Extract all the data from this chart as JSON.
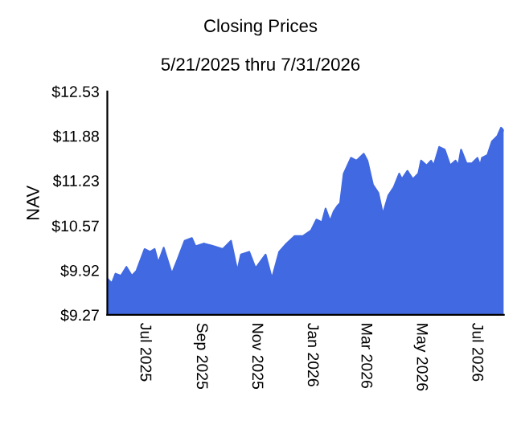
{
  "chart_data": {
    "type": "area",
    "title": "Closing Prices",
    "subtitle": "5/21/2025 thru 7/31/2026",
    "ylabel": "NAV",
    "color": "#4169e1",
    "x": [
      "2025-05-21",
      "2025-05-26",
      "2025-05-30",
      "2025-06-05",
      "2025-06-11",
      "2025-06-17",
      "2025-06-22",
      "2025-07-01",
      "2025-07-07",
      "2025-07-12",
      "2025-07-16",
      "2025-07-22",
      "2025-07-31",
      "2025-08-06",
      "2025-08-14",
      "2025-08-22",
      "2025-08-26",
      "2025-09-04",
      "2025-09-13",
      "2025-09-25",
      "2025-10-04",
      "2025-10-11",
      "2025-10-15",
      "2025-10-24",
      "2025-10-31",
      "2025-11-11",
      "2025-11-18",
      "2025-11-26",
      "2025-12-04",
      "2025-12-13",
      "2025-12-22",
      "2025-12-31",
      "2026-01-06",
      "2026-01-12",
      "2026-01-16",
      "2026-01-21",
      "2026-01-25",
      "2026-01-29",
      "2026-02-01",
      "2026-02-05",
      "2026-02-13",
      "2026-02-19",
      "2026-02-27",
      "2026-03-03",
      "2026-03-09",
      "2026-03-15",
      "2026-03-20",
      "2026-03-26",
      "2026-04-01",
      "2026-04-07",
      "2026-04-10",
      "2026-04-16",
      "2026-04-22",
      "2026-04-28",
      "2026-05-01",
      "2026-05-07",
      "2026-05-12",
      "2026-05-15",
      "2026-05-21",
      "2026-05-27",
      "2026-06-02",
      "2026-06-08",
      "2026-06-11",
      "2026-06-14",
      "2026-06-20",
      "2026-06-26",
      "2026-07-02",
      "2026-07-05",
      "2026-07-07",
      "2026-07-13",
      "2026-07-18",
      "2026-07-24",
      "2026-07-28",
      "2026-07-31"
    ],
    "values": [
      9.8,
      9.73,
      9.87,
      9.84,
      9.97,
      9.84,
      9.91,
      10.23,
      10.19,
      10.23,
      10.03,
      10.25,
      9.87,
      10.07,
      10.35,
      10.39,
      10.27,
      10.31,
      10.28,
      10.23,
      10.35,
      9.91,
      10.15,
      10.19,
      9.95,
      10.15,
      9.8,
      10.19,
      10.31,
      10.42,
      10.42,
      10.5,
      10.66,
      10.62,
      10.82,
      10.64,
      10.78,
      10.86,
      10.9,
      11.33,
      11.56,
      11.52,
      11.62,
      11.52,
      11.17,
      11.05,
      10.74,
      11.01,
      11.13,
      11.33,
      11.25,
      11.37,
      11.25,
      11.33,
      11.52,
      11.45,
      11.52,
      11.45,
      11.72,
      11.68,
      11.45,
      11.52,
      11.45,
      11.68,
      11.48,
      11.48,
      11.56,
      11.45,
      11.56,
      11.6,
      11.8,
      11.88,
      12.0,
      11.96
    ],
    "xlim": [
      "2025-05-21",
      "2026-07-31"
    ],
    "xticks": [
      {
        "value": "2025-07-01",
        "label": "Jul 2025"
      },
      {
        "value": "2025-09-01",
        "label": "Sep 2025"
      },
      {
        "value": "2025-11-01",
        "label": "Nov 2025"
      },
      {
        "value": "2026-01-01",
        "label": "Jan 2026"
      },
      {
        "value": "2026-03-01",
        "label": "Mar 2026"
      },
      {
        "value": "2026-05-01",
        "label": "May 2026"
      },
      {
        "value": "2026-07-01",
        "label": "Jul 2026"
      }
    ],
    "ylim": [
      9.27,
      12.53
    ],
    "yticks": [
      {
        "value": 9.27,
        "label": "$9.27"
      },
      {
        "value": 9.92,
        "label": "$9.92"
      },
      {
        "value": 10.57,
        "label": "$10.57"
      },
      {
        "value": 11.23,
        "label": "$11.23"
      },
      {
        "value": 11.88,
        "label": "$11.88"
      },
      {
        "value": 12.53,
        "label": "$12.53"
      }
    ],
    "grid": false,
    "legend": false
  }
}
